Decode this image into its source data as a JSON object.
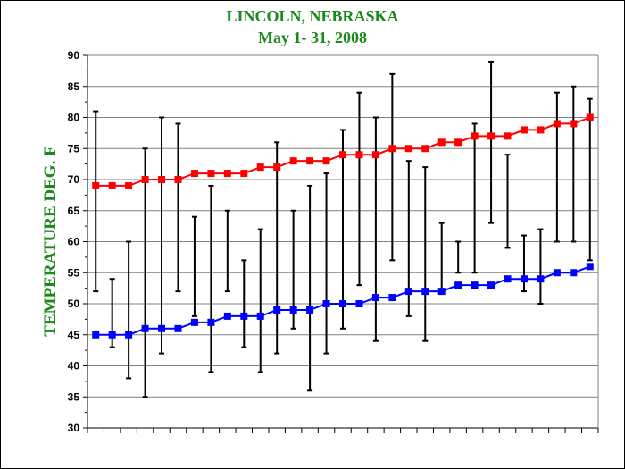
{
  "colors": {
    "title": "#1a8a1a",
    "high_series": "#ff0000",
    "low_series": "#0000ff",
    "range_bar": "#000000",
    "grid": "#808080"
  },
  "chart_data": {
    "type": "line",
    "title": "LINCOLN, NEBRASKA",
    "subtitle": "May 1- 31,  2008",
    "xlabel": "",
    "ylabel": "TEMPERATURE DEG. F",
    "ylim": [
      30,
      90
    ],
    "yticks": [
      30,
      35,
      40,
      45,
      50,
      55,
      60,
      65,
      70,
      75,
      80,
      85,
      90
    ],
    "grid": true,
    "x": [
      1,
      2,
      3,
      4,
      5,
      6,
      7,
      8,
      9,
      10,
      11,
      12,
      13,
      14,
      15,
      16,
      17,
      18,
      19,
      20,
      21,
      22,
      23,
      24,
      25,
      26,
      27,
      28,
      29,
      30,
      31
    ],
    "series": [
      {
        "role": "normal_high",
        "color": "#ff0000",
        "marker": "square",
        "values": [
          69,
          69,
          69,
          70,
          70,
          70,
          71,
          71,
          71,
          71,
          72,
          72,
          73,
          73,
          73,
          74,
          74,
          74,
          75,
          75,
          75,
          76,
          76,
          77,
          77,
          77,
          78,
          78,
          79,
          79,
          80
        ]
      },
      {
        "role": "normal_low",
        "color": "#0000ff",
        "marker": "square",
        "values": [
          45,
          45,
          45,
          46,
          46,
          46,
          47,
          47,
          48,
          48,
          48,
          49,
          49,
          49,
          50,
          50,
          50,
          51,
          51,
          52,
          52,
          52,
          53,
          53,
          53,
          54,
          54,
          54,
          55,
          55,
          56
        ]
      }
    ],
    "observed_range": {
      "high": [
        81,
        54,
        60,
        75,
        80,
        79,
        64,
        69,
        65,
        57,
        62,
        76,
        65,
        69,
        71,
        78,
        84,
        80,
        87,
        73,
        72,
        63,
        60,
        79,
        89,
        74,
        61,
        62,
        84,
        85,
        83
      ],
      "low": [
        52,
        43,
        38,
        35,
        42,
        52,
        48,
        39,
        52,
        43,
        39,
        42,
        46,
        36,
        42,
        46,
        53,
        44,
        57,
        48,
        44,
        52,
        55,
        55,
        63,
        59,
        52,
        50,
        60,
        60,
        57
      ]
    }
  }
}
